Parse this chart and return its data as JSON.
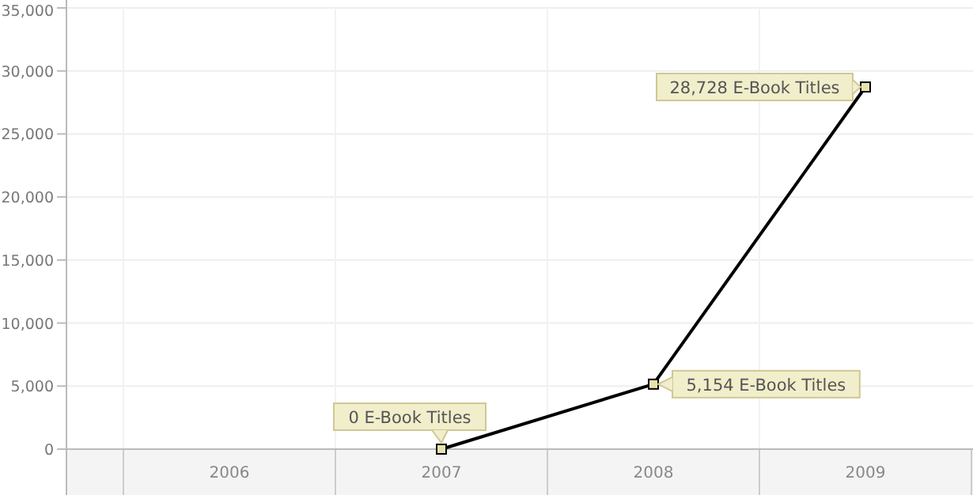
{
  "chart_data": {
    "type": "line",
    "categories": [
      "2006",
      "2007",
      "2008",
      "2009"
    ],
    "series": [
      {
        "color": "#000000",
        "values": [
          null,
          0,
          5154,
          28728
        ],
        "value_labels": [
          null,
          "0 E-Book Titles",
          "5,154 E-Book Titles",
          "28,728 E-Book Titles"
        ]
      }
    ],
    "ylim": [
      0,
      35000
    ],
    "yticks": [
      {
        "value": 0,
        "label": "0"
      },
      {
        "value": 5000,
        "label": "5,000"
      },
      {
        "value": 10000,
        "label": "10,000"
      },
      {
        "value": 15000,
        "label": "15,000"
      },
      {
        "value": 20000,
        "label": "20,000"
      },
      {
        "value": 25000,
        "label": "25,000"
      },
      {
        "value": 30000,
        "label": "30,000"
      },
      {
        "value": 35000,
        "label": "35,000"
      }
    ],
    "grid": true,
    "marker": "square"
  }
}
